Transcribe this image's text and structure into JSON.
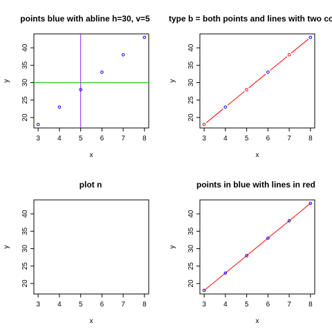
{
  "panels": [
    {
      "title": "points blue with abline h=30, v=5",
      "xlabel": "x",
      "ylabel": "y",
      "xticks": [
        "3",
        "4",
        "5",
        "6",
        "7",
        "8"
      ],
      "yticks": [
        "20",
        "25",
        "30",
        "35",
        "40"
      ]
    },
    {
      "title": "type b = both points and lines with two colors",
      "xlabel": "x",
      "ylabel": "y",
      "xticks": [
        "3",
        "4",
        "5",
        "6",
        "7",
        "8"
      ],
      "yticks": [
        "20",
        "25",
        "30",
        "35",
        "40"
      ]
    },
    {
      "title": "plot n",
      "xlabel": "x",
      "ylabel": "y",
      "xticks": [
        "3",
        "4",
        "5",
        "6",
        "7",
        "8"
      ],
      "yticks": [
        "20",
        "25",
        "30",
        "35",
        "40"
      ]
    },
    {
      "title": "points in blue with lines in red",
      "xlabel": "x",
      "ylabel": "y",
      "xticks": [
        "3",
        "4",
        "5",
        "6",
        "7",
        "8"
      ],
      "yticks": [
        "20",
        "25",
        "30",
        "35",
        "40"
      ]
    }
  ],
  "chart_data": [
    {
      "type": "scatter",
      "title": "points blue with abline h=30, v=5",
      "xlabel": "x",
      "ylabel": "y",
      "x": [
        3,
        4,
        5,
        6,
        7,
        8
      ],
      "y": [
        18,
        23,
        28,
        33,
        38,
        43
      ],
      "xlim": [
        2.8,
        8.2
      ],
      "ylim": [
        17,
        44
      ],
      "point_color": "#0000ff",
      "ablines": [
        {
          "orientation": "horizontal",
          "value": 30,
          "color": "#00cd00"
        },
        {
          "orientation": "vertical",
          "value": 5,
          "color": "#a020f0"
        }
      ],
      "grid": false,
      "legend": "none"
    },
    {
      "type": "line",
      "title": "type b = both points and lines with two colors",
      "xlabel": "x",
      "ylabel": "y",
      "x": [
        3,
        4,
        5,
        6,
        7,
        8
      ],
      "y": [
        18,
        23,
        28,
        33,
        38,
        43
      ],
      "xlim": [
        2.8,
        8.2
      ],
      "ylim": [
        17,
        44
      ],
      "show_points": true,
      "line_style": "broken",
      "point_colors": [
        "#ff0000",
        "#0000ff"
      ],
      "line_colors": [
        "#ff0000"
      ],
      "grid": false,
      "legend": "none"
    },
    {
      "type": "scatter",
      "title": "plot n",
      "xlabel": "x",
      "ylabel": "y",
      "x": [],
      "y": [],
      "xlim": [
        2.8,
        8.2
      ],
      "ylim": [
        17,
        44
      ],
      "grid": false,
      "legend": "none"
    },
    {
      "type": "line",
      "title": "points in blue with lines in red",
      "xlabel": "x",
      "ylabel": "y",
      "x": [
        3,
        4,
        5,
        6,
        7,
        8
      ],
      "y": [
        18,
        23,
        28,
        33,
        38,
        43
      ],
      "xlim": [
        2.8,
        8.2
      ],
      "ylim": [
        17,
        44
      ],
      "show_points": true,
      "line_style": "overplotted",
      "point_colors": [
        "#0000ff"
      ],
      "line_colors": [
        "#ff0000"
      ],
      "grid": false,
      "legend": "none"
    }
  ]
}
